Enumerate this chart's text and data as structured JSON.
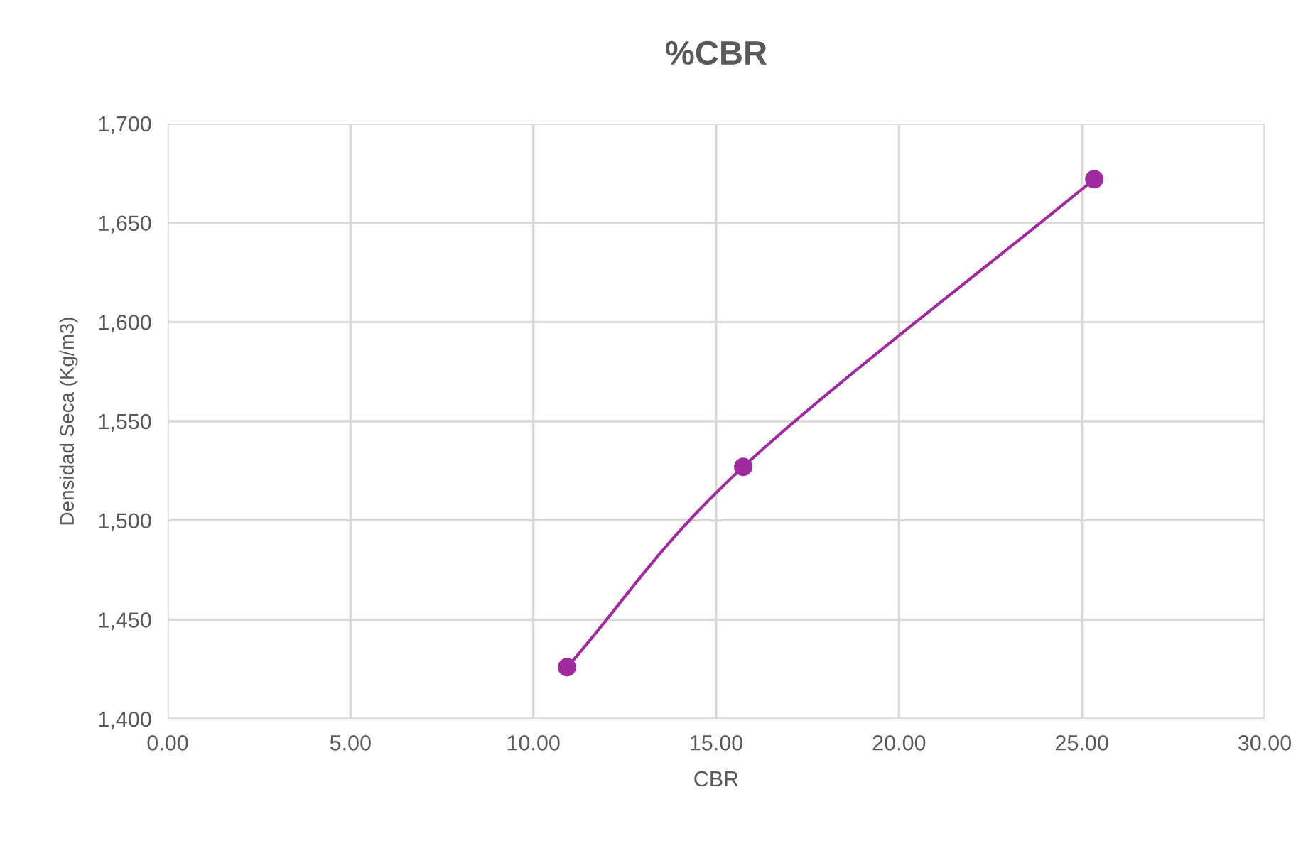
{
  "chart_data": {
    "type": "line",
    "title": "%CBR",
    "xlabel": "CBR",
    "ylabel": "Densidad Seca (Kg/m3)",
    "series": [
      {
        "color": "#a02b9e",
        "x": [
          10.92,
          15.74,
          25.34
        ],
        "values": [
          1426,
          1527,
          1672
        ]
      }
    ],
    "marker": "circle",
    "line_style": "solid",
    "grid": true,
    "xlim": [
      0,
      30
    ],
    "xticks": [
      {
        "value": 0,
        "label": "0.00"
      },
      {
        "value": 5,
        "label": "5.00"
      },
      {
        "value": 10,
        "label": "10.00"
      },
      {
        "value": 15,
        "label": "15.00"
      },
      {
        "value": 20,
        "label": "20.00"
      },
      {
        "value": 25,
        "label": "25.00"
      },
      {
        "value": 30,
        "label": "30.00"
      }
    ],
    "ylim": [
      1400,
      1700
    ],
    "yticks": [
      {
        "value": 1400,
        "label": "1,400"
      },
      {
        "value": 1450,
        "label": "1,450"
      },
      {
        "value": 1500,
        "label": "1,500"
      },
      {
        "value": 1550,
        "label": "1,550"
      },
      {
        "value": 1600,
        "label": "1,600"
      },
      {
        "value": 1650,
        "label": "1,650"
      },
      {
        "value": 1700,
        "label": "1,700"
      }
    ]
  }
}
